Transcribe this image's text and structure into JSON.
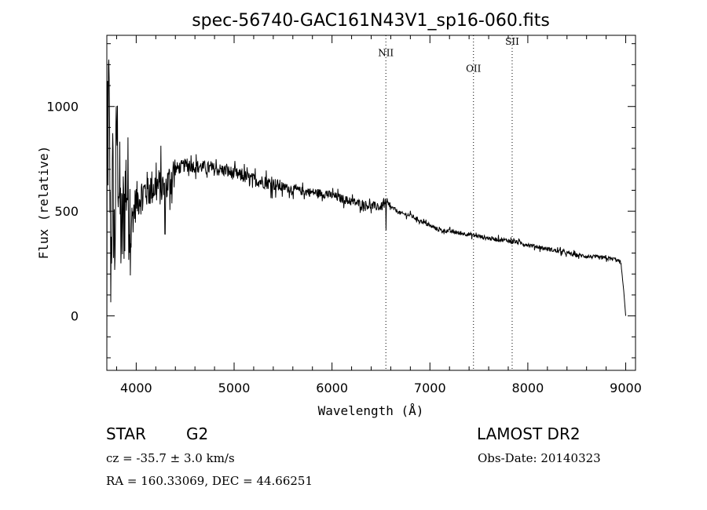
{
  "chart_data": {
    "type": "line",
    "title": "spec-56740-GAC161N43V1_sp16-060.fits",
    "xlabel": "Wavelength (Å)",
    "ylabel": "Flux (relative)",
    "xlim": [
      3700,
      9100
    ],
    "ylim": [
      -260,
      1340
    ],
    "x_ticks": [
      4000,
      5000,
      6000,
      7000,
      8000,
      9000
    ],
    "x_tick_labels": [
      "4000",
      "5000",
      "6000",
      "7000",
      "8000",
      "9000"
    ],
    "y_ticks": [
      0,
      500,
      1000
    ],
    "y_tick_labels": [
      "0",
      "500",
      "1000"
    ],
    "grid": false,
    "series": [
      {
        "name": "spectrum",
        "x": [
          3700,
          3720,
          3740,
          3760,
          3780,
          3800,
          3850,
          3900,
          3950,
          4000,
          4100,
          4200,
          4300,
          4400,
          4500,
          4600,
          4700,
          4800,
          4900,
          5000,
          5100,
          5200,
          5300,
          5400,
          5500,
          5600,
          5700,
          5800,
          5900,
          6000,
          6100,
          6200,
          6300,
          6400,
          6500,
          6550,
          6600,
          6700,
          6800,
          6900,
          7000,
          7100,
          7200,
          7300,
          7400,
          7500,
          7600,
          7700,
          7800,
          7900,
          8000,
          8100,
          8200,
          8300,
          8400,
          8500,
          8600,
          8700,
          8800,
          8900,
          8950,
          8980,
          9000
        ],
        "y": [
          400,
          1100,
          250,
          650,
          300,
          900,
          350,
          650,
          450,
          550,
          600,
          620,
          610,
          700,
          720,
          715,
          710,
          700,
          695,
          680,
          665,
          650,
          640,
          630,
          615,
          605,
          595,
          590,
          585,
          575,
          560,
          545,
          535,
          525,
          520,
          540,
          520,
          490,
          480,
          455,
          430,
          410,
          405,
          395,
          390,
          380,
          370,
          365,
          360,
          350,
          340,
          330,
          320,
          310,
          300,
          290,
          285,
          280,
          275,
          270,
          255,
          120,
          0
        ]
      }
    ],
    "noise_amplitude": [
      {
        "from": 3700,
        "to": 3950,
        "amp": 300
      },
      {
        "from": 3950,
        "to": 4400,
        "amp": 130
      },
      {
        "from": 4400,
        "to": 5500,
        "amp": 45
      },
      {
        "from": 5500,
        "to": 6600,
        "amp": 30
      },
      {
        "from": 6600,
        "to": 9000,
        "amp": 14
      }
    ],
    "emission_lines": [
      {
        "name": "NII",
        "wavelength": 6550,
        "label_y": 1240
      },
      {
        "name": "OII",
        "wavelength": 7445,
        "label_y": 1165
      },
      {
        "name": "SII",
        "wavelength": 7840,
        "label_y": 1295
      }
    ],
    "annotations": {
      "object_class": "STAR",
      "subclass": "G2",
      "cz": "cz = -35.7 ± 3.0 km/s",
      "coords": "RA = 160.33069, DEC =  44.66251",
      "survey": "LAMOST DR2",
      "obs_date": "Obs-Date: 20140323"
    }
  }
}
